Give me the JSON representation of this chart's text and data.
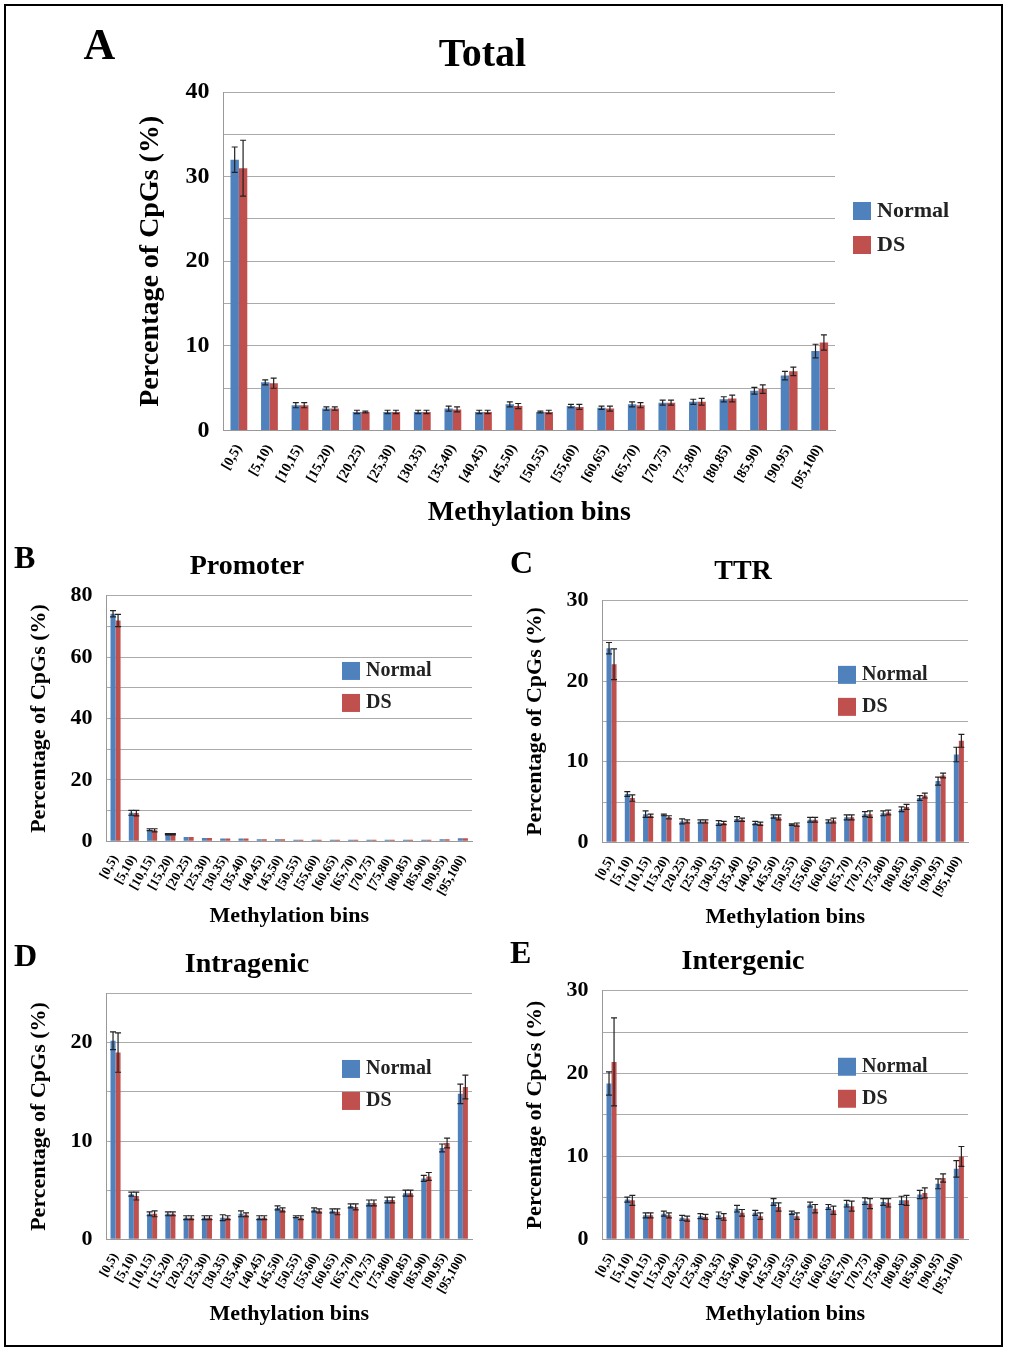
{
  "chart_data": [
    {
      "type": "bar",
      "title": "Total",
      "xlabel": "Methylation bins",
      "ylabel": "Percentage of CpGs (%)",
      "annotations": [
        "A"
      ],
      "legend": "right",
      "grid": "y",
      "categories": [
        "[0,5)",
        "[5,10)",
        "[10,15)",
        "[15,20)",
        "[20,25)",
        "[25,30)",
        "[30,35)",
        "[35,40)",
        "[40,45)",
        "[45,50)",
        "[50,55)",
        "[55,60)",
        "[60,65)",
        "[65,70)",
        "[70,75)",
        "[75,80)",
        "[80,85)",
        "[85,90)",
        "[90,95)",
        "[95,100)"
      ],
      "ylim": [
        0,
        40
      ],
      "yticks": [
        0,
        {
          "value": 5,
          "label": null
        },
        10,
        {
          "value": 15,
          "label": null
        },
        20,
        {
          "value": 25,
          "label": null
        },
        30,
        {
          "value": 35,
          "label": null
        },
        40
      ],
      "series": [
        {
          "name": "Normal",
          "color": "#4f81bd",
          "values": [
            32.0,
            5.7,
            3.0,
            2.6,
            2.2,
            2.2,
            2.2,
            2.6,
            2.2,
            3.1,
            2.2,
            2.9,
            2.7,
            3.1,
            3.3,
            3.4,
            3.7,
            4.7,
            6.5,
            9.4
          ],
          "errors": [
            1.5,
            0.3,
            0.3,
            0.2,
            0.2,
            0.2,
            0.2,
            0.3,
            0.2,
            0.3,
            0.1,
            0.2,
            0.2,
            0.3,
            0.3,
            0.3,
            0.3,
            0.4,
            0.5,
            0.8
          ]
        },
        {
          "name": "DS",
          "color": "#c0504d",
          "values": [
            31.0,
            5.6,
            3.0,
            2.6,
            2.2,
            2.2,
            2.2,
            2.5,
            2.2,
            2.9,
            2.2,
            2.8,
            2.6,
            3.0,
            3.3,
            3.4,
            3.8,
            4.9,
            7.0,
            10.4
          ],
          "errors": [
            3.3,
            0.6,
            0.3,
            0.2,
            0.1,
            0.2,
            0.2,
            0.3,
            0.2,
            0.3,
            0.2,
            0.3,
            0.3,
            0.3,
            0.3,
            0.4,
            0.4,
            0.5,
            0.5,
            0.9
          ]
        }
      ]
    },
    {
      "type": "bar",
      "title": "Promoter",
      "xlabel": "Methylation bins",
      "ylabel": "Percentage of CpGs (%)",
      "annotations": [
        "B"
      ],
      "legend": "right",
      "grid": "y",
      "categories": [
        "[0,5)",
        "[5,10)",
        "[10,15)",
        "[15,20)",
        "[20,25)",
        "[25,30)",
        "[30,35)",
        "[35,40)",
        "[40,45)",
        "[45,50)",
        "[50,55)",
        "[55,60)",
        "[60,65)",
        "[65,70)",
        "[70,75)",
        "[75,80)",
        "[80,85)",
        "[85,90)",
        "[90,95)",
        "[95,100)"
      ],
      "ylim": [
        0,
        80
      ],
      "yticks": [
        0,
        {
          "value": 10,
          "label": null
        },
        20,
        {
          "value": 30,
          "label": null
        },
        40,
        {
          "value": 50,
          "label": null
        },
        60,
        {
          "value": 70,
          "label": null
        },
        80
      ],
      "series": [
        {
          "name": "Normal",
          "color": "#4f81bd",
          "values": [
            74.1,
            9.3,
            3.8,
            2.3,
            1.4,
            1.1,
            0.9,
            0.9,
            0.7,
            0.7,
            0.5,
            0.5,
            0.5,
            0.5,
            0.5,
            0.5,
            0.5,
            0.5,
            0.7,
            1.0
          ],
          "errors": [
            1.0,
            0.8,
            0.3,
            0.2,
            null,
            null,
            null,
            null,
            null,
            null,
            null,
            null,
            null,
            null,
            null,
            null,
            null,
            null,
            null,
            null
          ]
        },
        {
          "name": "DS",
          "color": "#c0504d",
          "values": [
            71.9,
            9.2,
            3.6,
            2.3,
            1.4,
            1.1,
            0.9,
            0.9,
            0.7,
            0.7,
            0.5,
            0.5,
            0.5,
            0.5,
            0.5,
            0.5,
            0.5,
            0.5,
            0.7,
            1.0
          ],
          "errors": [
            2.0,
            0.9,
            0.5,
            0.2,
            null,
            null,
            null,
            null,
            null,
            null,
            null,
            null,
            null,
            null,
            null,
            null,
            null,
            null,
            null,
            null
          ]
        }
      ]
    },
    {
      "type": "bar",
      "title": "TTR",
      "xlabel": "Methylation bins",
      "ylabel": "Percentage of CpGs (%)",
      "annotations": [
        "C"
      ],
      "legend": "right",
      "grid": "y",
      "categories": [
        "[0,5)",
        "[5,10)",
        "[10,15)",
        "[15,20)",
        "[20,25)",
        "[25,30)",
        "[30,35)",
        "[35,40)",
        "[40,45)",
        "[45,50)",
        "[50,55)",
        "[55,60)",
        "[60,65)",
        "[65,70)",
        "[70,75)",
        "[75,80)",
        "[80,85)",
        "[85,90)",
        "[90,95)",
        "[95,100)"
      ],
      "ylim": [
        0,
        30
      ],
      "yticks": [
        0,
        {
          "value": 5,
          "label": null
        },
        10,
        {
          "value": 15,
          "label": null
        },
        20,
        {
          "value": 25,
          "label": null
        },
        30
      ],
      "series": [
        {
          "name": "Normal",
          "color": "#4f81bd",
          "values": [
            24.1,
            6.0,
            3.5,
            3.4,
            2.6,
            2.6,
            2.4,
            2.9,
            2.4,
            3.2,
            2.2,
            2.8,
            2.6,
            3.1,
            3.5,
            3.6,
            4.1,
            5.5,
            7.6,
            10.9
          ],
          "errors": [
            0.7,
            0.3,
            0.4,
            0.1,
            0.3,
            0.2,
            0.3,
            0.3,
            0.2,
            0.2,
            0.1,
            0.3,
            0.2,
            0.3,
            0.3,
            0.3,
            0.3,
            0.3,
            0.5,
            0.9
          ]
        },
        {
          "name": "DS",
          "color": "#c0504d",
          "values": [
            22.1,
            5.5,
            3.3,
            3.1,
            2.6,
            2.6,
            2.4,
            2.8,
            2.3,
            3.1,
            2.2,
            2.8,
            2.7,
            3.1,
            3.5,
            3.7,
            4.4,
            5.8,
            8.3,
            12.6
          ],
          "errors": [
            1.9,
            0.4,
            0.2,
            0.2,
            0.2,
            0.2,
            0.2,
            0.2,
            0.2,
            0.3,
            0.2,
            0.3,
            0.3,
            0.3,
            0.4,
            0.3,
            0.3,
            0.3,
            0.3,
            0.8
          ]
        }
      ]
    },
    {
      "type": "bar",
      "title": "Intragenic",
      "xlabel": "Methylation bins",
      "ylabel": "Percentage of CpGs (%)",
      "annotations": [
        "D"
      ],
      "legend": "right",
      "grid": "y",
      "categories": [
        "[0,5)",
        "[5,10)",
        "[10,15)",
        "[15,20)",
        "[20,25)",
        "[25,30)",
        "[30,35)",
        "[35,40)",
        "[40,45)",
        "[45,50)",
        "[50,55)",
        "[55,60)",
        "[60,65)",
        "[65,70)",
        "[70,75)",
        "[75,80)",
        "[80,85)",
        "[85,90)",
        "[90,95)",
        "[95,100)"
      ],
      "ylim": [
        0,
        25
      ],
      "yticks": [
        0,
        {
          "value": 5,
          "label": null
        },
        10,
        {
          "value": 15,
          "label": null
        },
        20,
        {
          "value": 25,
          "label": null
        }
      ],
      "series": [
        {
          "name": "Normal",
          "color": "#4f81bd",
          "values": [
            20.2,
            4.6,
            2.6,
            2.6,
            2.2,
            2.2,
            2.2,
            2.6,
            2.2,
            3.2,
            2.3,
            3.0,
            2.9,
            3.4,
            3.7,
            4.0,
            4.7,
            6.2,
            9.3,
            14.8
          ],
          "errors": [
            0.9,
            0.2,
            0.2,
            0.2,
            0.2,
            0.2,
            0.3,
            0.3,
            0.2,
            0.2,
            0.1,
            0.2,
            0.2,
            0.2,
            0.3,
            0.3,
            0.3,
            0.3,
            0.4,
            1.0
          ]
        },
        {
          "name": "DS",
          "color": "#c0504d",
          "values": [
            19.0,
            4.4,
            2.6,
            2.6,
            2.2,
            2.2,
            2.2,
            2.5,
            2.2,
            3.0,
            2.2,
            2.9,
            2.8,
            3.3,
            3.7,
            4.0,
            4.7,
            6.4,
            9.8,
            15.5
          ],
          "errors": [
            2.0,
            0.4,
            0.3,
            0.2,
            0.2,
            0.2,
            0.2,
            0.2,
            0.2,
            0.2,
            0.2,
            0.2,
            0.3,
            0.3,
            0.3,
            0.3,
            0.3,
            0.4,
            0.5,
            1.2
          ]
        }
      ]
    },
    {
      "type": "bar",
      "title": "Intergenic",
      "xlabel": "Methylation bins",
      "ylabel": "Percentage of CpGs (%)",
      "annotations": [
        "E"
      ],
      "legend": "right",
      "grid": "y",
      "categories": [
        "[0,5)",
        "[5,10)",
        "[10,15)",
        "[15,20)",
        "[20,25)",
        "[25,30)",
        "[30,35)",
        "[35,40)",
        "[40,45)",
        "[45,50)",
        "[50,55)",
        "[55,60)",
        "[60,65)",
        "[65,70)",
        "[70,75)",
        "[75,80)",
        "[80,85)",
        "[85,90)",
        "[90,95)",
        "[95,100)"
      ],
      "ylim": [
        0,
        30
      ],
      "yticks": [
        0,
        {
          "value": 5,
          "label": null
        },
        10,
        {
          "value": 15,
          "label": null
        },
        20,
        {
          "value": 25,
          "label": null
        },
        30
      ],
      "series": [
        {
          "name": "Normal",
          "color": "#4f81bd",
          "values": [
            18.8,
            4.8,
            2.9,
            3.1,
            2.6,
            2.8,
            2.9,
            3.7,
            3.2,
            4.5,
            3.2,
            4.2,
            3.9,
            4.3,
            4.6,
            4.5,
            4.7,
            5.4,
            6.7,
            8.5
          ],
          "errors": [
            1.4,
            0.3,
            0.3,
            0.3,
            0.3,
            0.3,
            0.4,
            0.4,
            0.3,
            0.4,
            0.2,
            0.3,
            0.3,
            0.4,
            0.4,
            0.4,
            0.5,
            0.5,
            0.6,
            1.0
          ]
        },
        {
          "name": "DS",
          "color": "#c0504d",
          "values": [
            21.4,
            4.7,
            2.9,
            2.9,
            2.5,
            2.7,
            2.7,
            3.2,
            2.8,
            3.9,
            2.8,
            3.7,
            3.5,
            4.0,
            4.3,
            4.4,
            4.7,
            5.6,
            7.4,
            10.0
          ],
          "errors": [
            5.3,
            0.6,
            0.3,
            0.3,
            0.3,
            0.3,
            0.4,
            0.4,
            0.4,
            0.5,
            0.4,
            0.5,
            0.5,
            0.6,
            0.6,
            0.5,
            0.6,
            0.6,
            0.5,
            1.2
          ]
        }
      ]
    }
  ]
}
